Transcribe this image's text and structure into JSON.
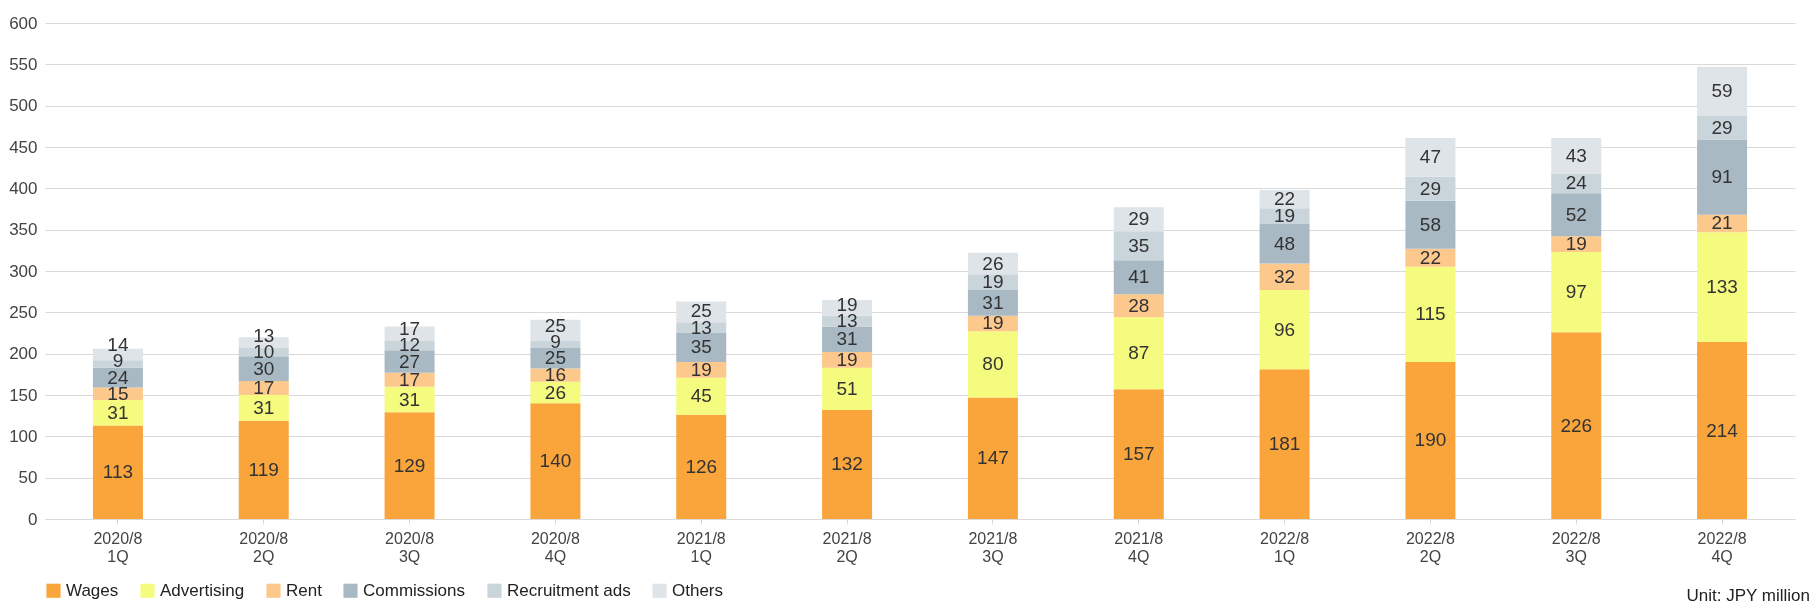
{
  "chart_data": {
    "type": "bar",
    "stacked": true,
    "categories": [
      "2020/8\n1Q",
      "2020/8\n2Q",
      "2020/8\n3Q",
      "2020/8\n4Q",
      "2021/8\n1Q",
      "2021/8\n2Q",
      "2021/8\n3Q",
      "2021/8\n4Q",
      "2022/8\n1Q",
      "2022/8\n2Q",
      "2022/8\n3Q",
      "2022/8\n4Q"
    ],
    "series": [
      {
        "name": "Wages",
        "color": "#f9a53c",
        "values": [
          113,
          119,
          129,
          140,
          126,
          132,
          147,
          157,
          181,
          190,
          226,
          214
        ]
      },
      {
        "name": "Advertising",
        "color": "#f4fb7f",
        "values": [
          31,
          31,
          31,
          26,
          45,
          51,
          80,
          87,
          96,
          115,
          97,
          133
        ]
      },
      {
        "name": "Rent",
        "color": "#fdc88b",
        "values": [
          15,
          17,
          17,
          16,
          19,
          19,
          19,
          28,
          32,
          22,
          19,
          21
        ]
      },
      {
        "name": "Commissions",
        "color": "#a9b9c4",
        "values": [
          24,
          30,
          27,
          25,
          35,
          31,
          31,
          41,
          48,
          58,
          52,
          91
        ]
      },
      {
        "name": "Recruitment ads",
        "color": "#cad4db",
        "values": [
          9,
          10,
          12,
          9,
          13,
          13,
          19,
          35,
          19,
          29,
          24,
          29
        ]
      },
      {
        "name": "Others",
        "color": "#dfe4e8",
        "values": [
          14,
          13,
          17,
          25,
          25,
          19,
          26,
          29,
          22,
          47,
          43,
          59
        ]
      }
    ],
    "ylim": [
      0,
      600
    ],
    "yticks": [
      0,
      50,
      100,
      150,
      200,
      250,
      300,
      350,
      400,
      450,
      500,
      550,
      600
    ],
    "grid": "y",
    "legend": "bottom",
    "data_labels": true,
    "annotations": [
      "Unit: JPY million"
    ]
  }
}
